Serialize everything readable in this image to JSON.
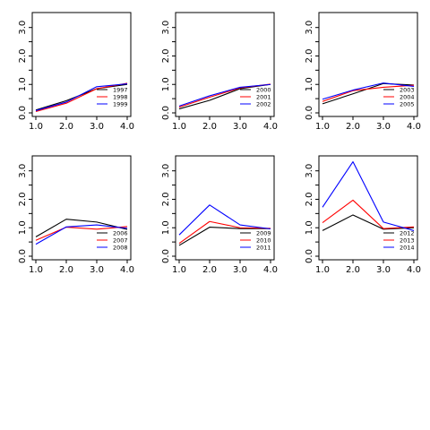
{
  "chart_data": [
    {
      "type": "line",
      "x": [
        1,
        2,
        3,
        4
      ],
      "series": [
        {
          "name": "1997",
          "color": "#000000",
          "values": [
            0.1,
            0.43,
            0.85,
            1.0
          ]
        },
        {
          "name": "1998",
          "color": "#ff0000",
          "values": [
            0.05,
            0.34,
            0.85,
            1.04
          ]
        },
        {
          "name": "1999",
          "color": "#0000ff",
          "values": [
            0.08,
            0.38,
            0.92,
            1.02
          ]
        }
      ],
      "xticks": [
        "1.0",
        "2.0",
        "3.0",
        "4.0"
      ],
      "yticks": [
        "0.0",
        "1.0",
        "2.0",
        "3.0"
      ],
      "xlim": [
        1,
        4
      ],
      "ylim": [
        0,
        3.4
      ],
      "legend_position": "bottom-right"
    },
    {
      "type": "line",
      "x": [
        1,
        2,
        3,
        4
      ],
      "series": [
        {
          "name": "2000",
          "color": "#000000",
          "values": [
            0.14,
            0.44,
            0.85,
            1.0
          ]
        },
        {
          "name": "2001",
          "color": "#ff0000",
          "values": [
            0.2,
            0.55,
            0.88,
            1.01
          ]
        },
        {
          "name": "2002",
          "color": "#0000ff",
          "values": [
            0.24,
            0.6,
            0.9,
            1.0
          ]
        }
      ],
      "xticks": [
        "1.0",
        "2.0",
        "3.0",
        "4.0"
      ],
      "yticks": [
        "0.0",
        "1.0",
        "2.0",
        "3.0"
      ],
      "xlim": [
        1,
        4
      ],
      "ylim": [
        0,
        3.4
      ],
      "legend_position": "bottom-right"
    },
    {
      "type": "line",
      "x": [
        1,
        2,
        3,
        4
      ],
      "series": [
        {
          "name": "2003",
          "color": "#000000",
          "values": [
            0.32,
            0.67,
            1.03,
            0.98
          ]
        },
        {
          "name": "2004",
          "color": "#ff0000",
          "values": [
            0.4,
            0.78,
            0.9,
            0.97
          ]
        },
        {
          "name": "2005",
          "color": "#0000ff",
          "values": [
            0.48,
            0.8,
            1.05,
            0.93
          ]
        }
      ],
      "xticks": [
        "1.0",
        "2.0",
        "3.0",
        "4.0"
      ],
      "yticks": [
        "0.0",
        "1.0",
        "2.0",
        "3.0"
      ],
      "xlim": [
        1,
        4
      ],
      "ylim": [
        0,
        3.4
      ],
      "legend_position": "bottom-right"
    },
    {
      "type": "line",
      "x": [
        1,
        2,
        3,
        4
      ],
      "series": [
        {
          "name": "2006",
          "color": "#000000",
          "values": [
            0.68,
            1.3,
            1.2,
            0.94
          ]
        },
        {
          "name": "2007",
          "color": "#ff0000",
          "values": [
            0.56,
            1.02,
            0.95,
            1.04
          ]
        },
        {
          "name": "2008",
          "color": "#0000ff",
          "values": [
            0.42,
            1.03,
            1.1,
            0.98
          ]
        }
      ],
      "xticks": [
        "1.0",
        "2.0",
        "3.0",
        "4.0"
      ],
      "yticks": [
        "0.0",
        "1.0",
        "2.0",
        "3.0"
      ],
      "xlim": [
        1,
        4
      ],
      "ylim": [
        0,
        3.4
      ],
      "legend_position": "bottom-right"
    },
    {
      "type": "line",
      "x": [
        1,
        2,
        3,
        4
      ],
      "series": [
        {
          "name": "2009",
          "color": "#000000",
          "values": [
            0.38,
            1.02,
            0.97,
            0.97
          ]
        },
        {
          "name": "2010",
          "color": "#ff0000",
          "values": [
            0.45,
            1.22,
            1.0,
            0.98
          ]
        },
        {
          "name": "2011",
          "color": "#0000ff",
          "values": [
            0.75,
            1.8,
            1.1,
            0.96
          ]
        }
      ],
      "xticks": [
        "1.0",
        "2.0",
        "3.0",
        "4.0"
      ],
      "yticks": [
        "0.0",
        "1.0",
        "2.0",
        "3.0"
      ],
      "xlim": [
        1,
        4
      ],
      "ylim": [
        0,
        3.4
      ],
      "legend_position": "bottom-right"
    },
    {
      "type": "line",
      "x": [
        1,
        2,
        3,
        4
      ],
      "series": [
        {
          "name": "2012",
          "color": "#000000",
          "values": [
            0.9,
            1.45,
            0.95,
            1.0
          ]
        },
        {
          "name": "2013",
          "color": "#ff0000",
          "values": [
            1.18,
            1.97,
            0.97,
            1.03
          ]
        },
        {
          "name": "2014",
          "color": "#0000ff",
          "values": [
            1.72,
            3.32,
            1.2,
            0.9
          ]
        }
      ],
      "xticks": [
        "1.0",
        "2.0",
        "3.0",
        "4.0"
      ],
      "yticks": [
        "0.0",
        "1.0",
        "2.0",
        "3.0"
      ],
      "xlim": [
        1,
        4
      ],
      "ylim": [
        0,
        3.4
      ],
      "legend_position": "bottom-right"
    }
  ]
}
